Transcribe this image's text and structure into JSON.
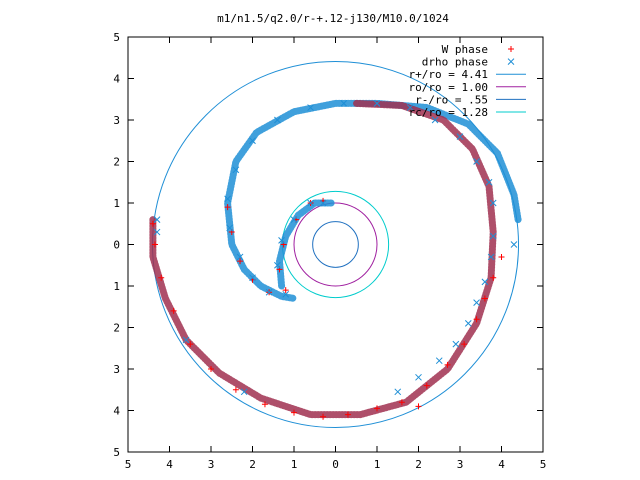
{
  "chart_data": {
    "type": "scatter",
    "title": "m1/n1.5/q2.0/r-+.12-j130/M10.0/1024",
    "xlim": [
      -5,
      5
    ],
    "ylim": [
      -5,
      5
    ],
    "xticks": [
      -5,
      -4,
      -3,
      -2,
      -1,
      0,
      1,
      2,
      3,
      4,
      5
    ],
    "yticks": [
      -5,
      -4,
      -3,
      -2,
      -1,
      0,
      1,
      2,
      3,
      4,
      5
    ],
    "xtick_labels": [
      "5",
      "4",
      "3",
      "2",
      "1",
      "0",
      "1",
      "2",
      "3",
      "4",
      "5"
    ],
    "ytick_labels": [
      "5",
      "4",
      "3",
      "2",
      "1",
      "0",
      "1",
      "2",
      "3",
      "4",
      "5"
    ],
    "grid": false,
    "legend_position": "top-right",
    "series": [
      {
        "name": "W phase",
        "kind": "points",
        "marker": "plus",
        "color": "#ff0000",
        "points": [
          [
            4.0,
            -0.3
          ],
          [
            3.8,
            -0.8
          ],
          [
            3.6,
            -1.3
          ],
          [
            3.4,
            -1.8
          ],
          [
            3.1,
            -2.4
          ],
          [
            2.7,
            -2.9
          ],
          [
            2.2,
            -3.4
          ],
          [
            2.0,
            -3.9
          ],
          [
            1.6,
            -3.8
          ],
          [
            1.0,
            -3.95
          ],
          [
            0.3,
            -4.1
          ],
          [
            -0.3,
            -4.15
          ],
          [
            -1.0,
            -4.05
          ],
          [
            -1.7,
            -3.85
          ],
          [
            -2.4,
            -3.5
          ],
          [
            -3.0,
            -3.0
          ],
          [
            -3.5,
            -2.4
          ],
          [
            -3.9,
            -1.6
          ],
          [
            -4.2,
            -0.8
          ],
          [
            -4.35,
            0.0
          ],
          [
            -4.4,
            0.5
          ],
          [
            -2.6,
            0.9
          ],
          [
            -2.5,
            0.3
          ],
          [
            -2.3,
            -0.4
          ],
          [
            -2.0,
            -0.85
          ],
          [
            -1.6,
            -1.15
          ],
          [
            -1.2,
            -1.1
          ],
          [
            -1.35,
            -0.6
          ],
          [
            -1.25,
            0.0
          ],
          [
            -0.95,
            0.6
          ],
          [
            -0.6,
            1.0
          ],
          [
            -0.3,
            1.05
          ]
        ]
      },
      {
        "name": "drho phase",
        "kind": "points",
        "marker": "cross",
        "color": "#1f8fd6",
        "points": [
          [
            4.3,
            0.0
          ],
          [
            3.8,
            0.2
          ],
          [
            3.75,
            -0.3
          ],
          [
            3.6,
            -0.9
          ],
          [
            3.4,
            -1.4
          ],
          [
            3.2,
            -1.9
          ],
          [
            2.9,
            -2.4
          ],
          [
            2.5,
            -2.8
          ],
          [
            2.0,
            -3.2
          ],
          [
            1.5,
            -3.55
          ],
          [
            -2.2,
            -3.55
          ],
          [
            -3.6,
            -2.3
          ],
          [
            -4.3,
            0.6
          ],
          [
            -4.3,
            0.3
          ],
          [
            3.8,
            1.0
          ],
          [
            3.7,
            1.5
          ],
          [
            3.4,
            2.0
          ],
          [
            3.0,
            2.6
          ],
          [
            2.4,
            3.0
          ],
          [
            1.8,
            3.3
          ],
          [
            1.0,
            3.4
          ],
          [
            0.2,
            3.4
          ],
          [
            -0.6,
            3.3
          ],
          [
            -1.4,
            3.0
          ],
          [
            -2.0,
            2.5
          ],
          [
            -2.4,
            1.8
          ],
          [
            -2.6,
            1.1
          ],
          [
            -2.55,
            0.4
          ],
          [
            -2.3,
            -0.3
          ],
          [
            -2.0,
            -0.8
          ],
          [
            -1.6,
            -1.15
          ],
          [
            -1.2,
            -1.2
          ],
          [
            -1.4,
            -0.5
          ],
          [
            -1.3,
            0.1
          ],
          [
            -1.0,
            0.6
          ],
          [
            -0.6,
            1.0
          ],
          [
            -0.3,
            1.0
          ]
        ]
      },
      {
        "name": "r+/ro = 4.41",
        "kind": "circle",
        "radius": 4.41,
        "color": "#1f8fd6"
      },
      {
        "name": "ro/ro = 1.00",
        "kind": "circle",
        "radius": 1.0,
        "color": "#a020a0"
      },
      {
        "name": "r-/ro = .55",
        "kind": "circle",
        "radius": 0.55,
        "color": "#1f70c0"
      },
      {
        "name": "rc/ro = 1.28",
        "kind": "circle",
        "radius": 1.28,
        "color": "#00cccc"
      }
    ],
    "spiral_tracks": [
      {
        "name": "outer arm",
        "series_color": "#1f8fd6",
        "points": [
          [
            4.4,
            0.6
          ],
          [
            4.3,
            1.2
          ],
          [
            3.9,
            2.2
          ],
          [
            3.2,
            2.9
          ],
          [
            2.2,
            3.3
          ],
          [
            1.0,
            3.4
          ],
          [
            0.0,
            3.4
          ],
          [
            -1.0,
            3.2
          ],
          [
            -1.9,
            2.7
          ],
          [
            -2.4,
            2.0
          ],
          [
            -2.6,
            1.0
          ],
          [
            -2.5,
            0.0
          ],
          [
            -2.2,
            -0.6
          ],
          [
            -1.8,
            -1.0
          ],
          [
            -1.3,
            -1.25
          ],
          [
            -1.0,
            -1.3
          ]
        ]
      },
      {
        "name": "inner arm",
        "series_color": "#1f8fd6",
        "points": [
          [
            -1.3,
            -1.0
          ],
          [
            -1.35,
            -0.4
          ],
          [
            -1.2,
            0.2
          ],
          [
            -0.9,
            0.7
          ],
          [
            -0.5,
            1.0
          ],
          [
            -0.1,
            1.0
          ]
        ]
      },
      {
        "name": "outer loop",
        "series_color": "#a03050",
        "points": [
          [
            -4.4,
            0.6
          ],
          [
            -4.4,
            -0.3
          ],
          [
            -4.1,
            -1.3
          ],
          [
            -3.6,
            -2.3
          ],
          [
            -2.8,
            -3.1
          ],
          [
            -1.8,
            -3.7
          ],
          [
            -0.6,
            -4.1
          ],
          [
            0.6,
            -4.1
          ],
          [
            1.7,
            -3.8
          ],
          [
            2.7,
            -3.0
          ],
          [
            3.4,
            -1.9
          ],
          [
            3.75,
            -0.8
          ],
          [
            3.8,
            0.3
          ],
          [
            3.7,
            1.4
          ],
          [
            3.3,
            2.3
          ],
          [
            2.6,
            3.0
          ],
          [
            1.6,
            3.35
          ],
          [
            0.5,
            3.4
          ]
        ]
      }
    ]
  }
}
